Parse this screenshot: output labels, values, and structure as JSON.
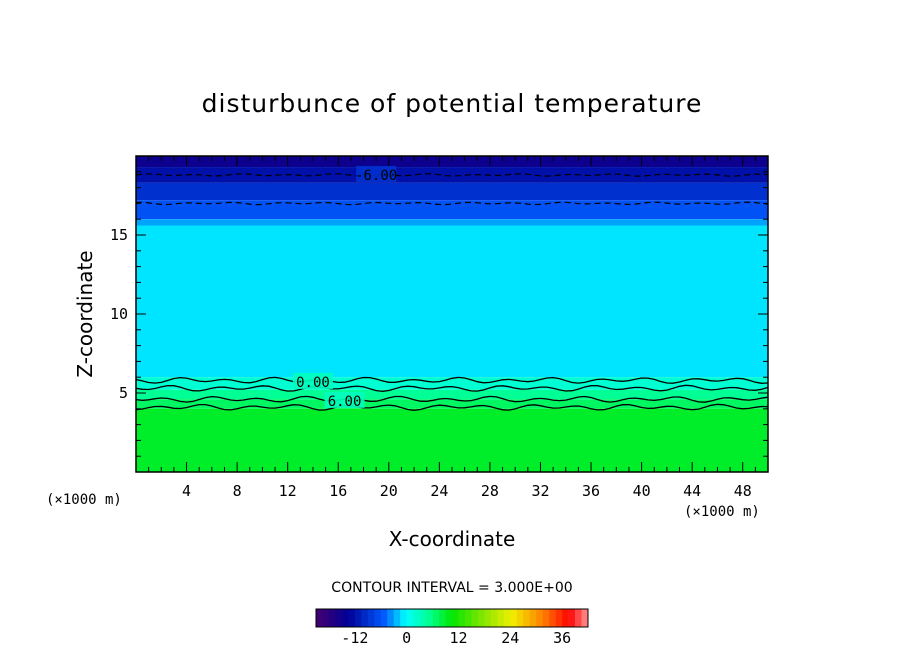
{
  "chart_data": {
    "type": "heatmap",
    "title": "disturbunce of potential temperature",
    "xlabel": "X-coordinate",
    "ylabel": "Z-coordinate",
    "x_unit": "(×1000 m)",
    "y_unit": "(×1000 m)",
    "xlim": [
      0,
      50
    ],
    "ylim": [
      0,
      20
    ],
    "x_ticks": [
      4,
      8,
      12,
      16,
      20,
      24,
      28,
      32,
      36,
      40,
      44,
      48
    ],
    "y_ticks": [
      5,
      10,
      15
    ],
    "contour_interval_label": "CONTOUR INTERVAL = 3.000E+00",
    "contour_interval": 3.0,
    "contour_labels": [
      {
        "text": "-6.00",
        "x": 19,
        "z": 18.8
      },
      {
        "text": "0.00",
        "x": 14,
        "z": 5.7
      },
      {
        "text": "6.00",
        "x": 16.5,
        "z": 4.5
      }
    ],
    "colorbar": {
      "min": -21,
      "max": 42,
      "ticks": [
        -12,
        0,
        12,
        24,
        36
      ]
    },
    "field_bands": [
      {
        "z_from": 19.3,
        "z_to": 20.0,
        "value": -15
      },
      {
        "z_from": 18.3,
        "z_to": 19.3,
        "value": -12
      },
      {
        "z_from": 17.2,
        "z_to": 18.3,
        "value": -9
      },
      {
        "z_from": 16.0,
        "z_to": 17.2,
        "value": -6
      },
      {
        "z_from": 15.6,
        "z_to": 16.0,
        "value": -3
      },
      {
        "z_from": 6.0,
        "z_to": 15.6,
        "value": -1
      },
      {
        "z_from": 5.2,
        "z_to": 6.0,
        "value": 2
      },
      {
        "z_from": 4.6,
        "z_to": 5.2,
        "value": 5
      },
      {
        "z_from": 4.0,
        "z_to": 4.6,
        "value": 7
      },
      {
        "z_from": 0.0,
        "z_to": 4.0,
        "value": 9
      }
    ],
    "contour_lines": [
      {
        "level": -6,
        "dashed": true,
        "z": 18.8
      },
      {
        "level": -3,
        "dashed": true,
        "z": 17.0
      },
      {
        "level": 0,
        "dashed": false,
        "z": 5.8
      },
      {
        "level": 3,
        "dashed": false,
        "z": 5.3
      },
      {
        "level": 6,
        "dashed": false,
        "z": 4.6
      },
      {
        "level": 9,
        "dashed": false,
        "z": 4.1
      }
    ]
  }
}
